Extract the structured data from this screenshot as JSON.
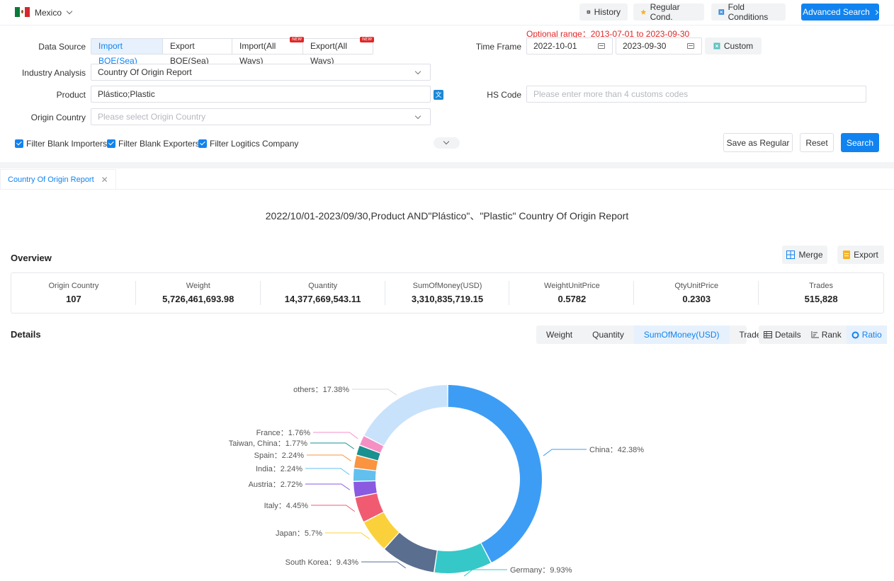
{
  "topbar": {
    "country": "Mexico",
    "history": "History",
    "regular_cond": "Regular Cond.",
    "fold_conditions": "Fold Conditions",
    "advanced_search": "Advanced Search"
  },
  "form": {
    "data_source_label": "Data Source",
    "data_sources": [
      "Import BOE(Sea)",
      "Export BOE(Sea)",
      "Import(All Ways)",
      "Export(All Ways)"
    ],
    "new_tag": "NEW",
    "optional_range": "Optional range：2013-07-01 to 2023-09-30",
    "time_frame_label": "Time Frame",
    "date_from": "2022-10-01",
    "date_to": "2023-09-30",
    "custom": "Custom",
    "industry_label": "Industry Analysis",
    "industry_value": "Country Of Origin Report",
    "product_label": "Product",
    "product_value": "Plástico;Plastic",
    "hs_label": "HS Code",
    "hs_placeholder": "Please enter more than 4 customs codes",
    "origin_label": "Origin Country",
    "origin_placeholder": "Please select Origin Country",
    "filter_importers": "Filter Blank Importers",
    "filter_exporters": "Filter Blank Exporters",
    "filter_logistics": "Filter Logitics Company",
    "save_regular": "Save as Regular",
    "reset": "Reset",
    "search": "Search"
  },
  "tab": {
    "label": "Country Of Origin Report",
    "close": "✕"
  },
  "report_title": "2022/10/01-2023/09/30,Product AND\"Plástico\"、\"Plastic\" Country Of Origin Report",
  "overview": {
    "title": "Overview",
    "merge": "Merge",
    "export": "Export",
    "cells": [
      {
        "label": "Origin Country",
        "value": "107"
      },
      {
        "label": "Weight",
        "value": "5,726,461,693.98"
      },
      {
        "label": "Quantity",
        "value": "14,377,669,543.11"
      },
      {
        "label": "SumOfMoney(USD)",
        "value": "3,310,835,719.15"
      },
      {
        "label": "WeightUnitPrice",
        "value": "0.5782"
      },
      {
        "label": "QtyUnitPrice",
        "value": "0.2303"
      },
      {
        "label": "Trades",
        "value": "515,828"
      }
    ]
  },
  "details": {
    "title": "Details",
    "metrics": [
      "Weight",
      "Quantity",
      "SumOfMoney(USD)",
      "Trades"
    ],
    "active_metric": 2,
    "views": [
      "Details",
      "Rank",
      "Ratio"
    ],
    "active_view": 2
  },
  "chart_data": {
    "type": "pie",
    "donut": true,
    "slices": [
      {
        "name": "China",
        "value": 42.38,
        "label": "China：42.38%",
        "color": "#3d9df5"
      },
      {
        "name": "Germany",
        "value": 9.93,
        "label": "Germany：9.93%",
        "color": "#36c8c8"
      },
      {
        "name": "South Korea",
        "value": 9.43,
        "label": "South Korea：9.43%",
        "color": "#5a6e8f"
      },
      {
        "name": "Japan",
        "value": 5.7,
        "label": "Japan：5.7%",
        "color": "#fbd13b"
      },
      {
        "name": "Italy",
        "value": 4.45,
        "label": "Italy：4.45%",
        "color": "#f05b72"
      },
      {
        "name": "Austria",
        "value": 2.72,
        "label": "Austria：2.72%",
        "color": "#8a5ae0"
      },
      {
        "name": "India",
        "value": 2.24,
        "label": "India：2.24%",
        "color": "#62c0ef"
      },
      {
        "name": "Spain",
        "value": 2.24,
        "label": "Spain：2.24%",
        "color": "#fa9440"
      },
      {
        "name": "Taiwan, China",
        "value": 1.77,
        "label": "Taiwan, China：1.77%",
        "color": "#1a9090"
      },
      {
        "name": "France",
        "value": 1.76,
        "label": "France：1.76%",
        "color": "#f590c5"
      },
      {
        "name": "others",
        "value": 17.38,
        "label": "others：17.38%",
        "color": "#c9e2fb"
      }
    ]
  }
}
